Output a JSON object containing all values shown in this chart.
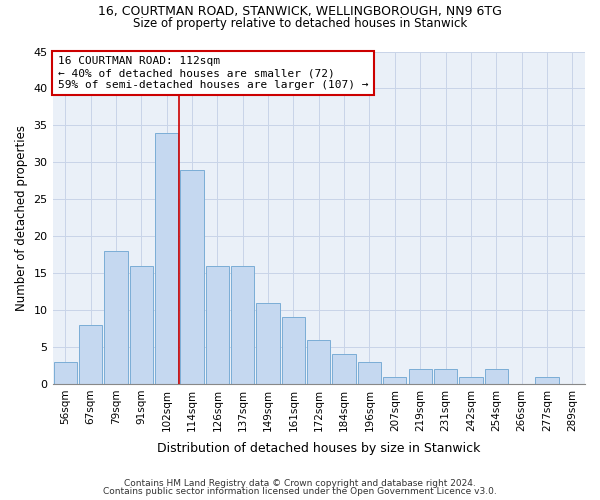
{
  "title1": "16, COURTMAN ROAD, STANWICK, WELLINGBOROUGH, NN9 6TG",
  "title2": "Size of property relative to detached houses in Stanwick",
  "xlabel": "Distribution of detached houses by size in Stanwick",
  "ylabel": "Number of detached properties",
  "categories": [
    "56sqm",
    "67sqm",
    "79sqm",
    "91sqm",
    "102sqm",
    "114sqm",
    "126sqm",
    "137sqm",
    "149sqm",
    "161sqm",
    "172sqm",
    "184sqm",
    "196sqm",
    "207sqm",
    "219sqm",
    "231sqm",
    "242sqm",
    "254sqm",
    "266sqm",
    "277sqm",
    "289sqm"
  ],
  "values": [
    3,
    8,
    18,
    16,
    34,
    29,
    16,
    16,
    11,
    9,
    6,
    4,
    3,
    1,
    2,
    2,
    1,
    2,
    0,
    1,
    0
  ],
  "bar_color": "#c5d8f0",
  "bar_edge_color": "#7badd6",
  "vline_x_index": 4.5,
  "annotation_line1": "16 COURTMAN ROAD: 112sqm",
  "annotation_line2": "← 40% of detached houses are smaller (72)",
  "annotation_line3": "59% of semi-detached houses are larger (107) →",
  "annotation_box_color": "#ffffff",
  "annotation_box_edge": "#cc0000",
  "vline_color": "#cc0000",
  "ylim": [
    0,
    45
  ],
  "yticks": [
    0,
    5,
    10,
    15,
    20,
    25,
    30,
    35,
    40,
    45
  ],
  "footer1": "Contains HM Land Registry data © Crown copyright and database right 2024.",
  "footer2": "Contains public sector information licensed under the Open Government Licence v3.0.",
  "bg_color": "#eaf0f8"
}
